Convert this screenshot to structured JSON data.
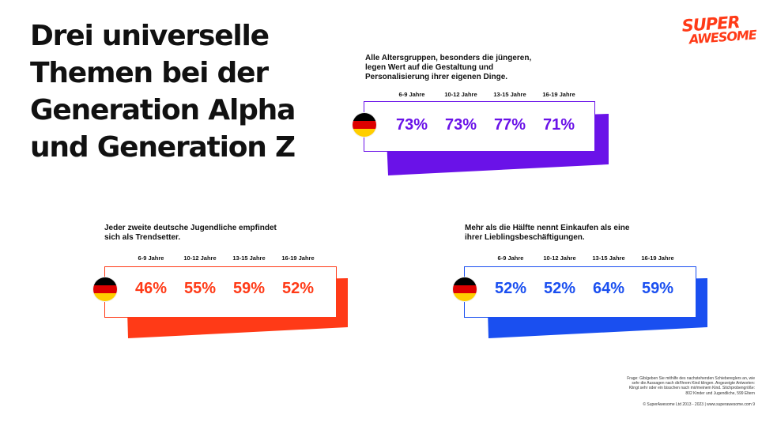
{
  "title_lines": [
    "Drei universelle",
    "Themen bei der",
    "Generation Alpha",
    "und Generation Z"
  ],
  "logo": {
    "line1": "SUPER",
    "line2": "AWESOME"
  },
  "blocks": [
    {
      "caption": [
        "Alle Altersgruppen, besonders die jüngeren,",
        "legen Wert auf die Gestaltung und",
        "Personalisierung ihrer eigenen Dinge."
      ],
      "ages": [
        "6-9 Jahre",
        "10-12 Jahre",
        "13-15 Jahre",
        "16-19 Jahre"
      ],
      "values": [
        "73%",
        "73%",
        "77%",
        "71%"
      ],
      "accent": "#6a12e8"
    },
    {
      "caption": [
        "Jeder zweite deutsche Jugendliche empfindet",
        "sich als Trendsetter."
      ],
      "ages": [
        "6-9 Jahre",
        "10-12 Jahre",
        "13-15 Jahre",
        "16-19 Jahre"
      ],
      "values": [
        "46%",
        "55%",
        "59%",
        "52%"
      ],
      "accent": "#ff3a17"
    },
    {
      "caption": [
        "Mehr als die Hälfte nennt Einkaufen als eine",
        "ihrer Lieblingsbeschäftigungen."
      ],
      "ages": [
        "6-9 Jahre",
        "10-12 Jahre",
        "13-15 Jahre",
        "16-19 Jahre"
      ],
      "values": [
        "52%",
        "52%",
        "64%",
        "59%"
      ],
      "accent": "#1a4ff0"
    }
  ],
  "flag_icon": "germany-flag-icon",
  "flag_colors": [
    "#000000",
    "#dd0000",
    "#ffce00"
  ],
  "footnote_lines": [
    "Frage: Gib/geben Sie mithilfe des nachstehenden Schiebereglers an, wie",
    "sehr die Aussagen nach dir/Ihrem Kind klingen. Angezeigte Antworten:",
    "Klingt sehr oder ein bisschen nach mir/meinem Kind. Stichprobengröße:",
    "802 Kinder und Jugendliche, 599 Eltern"
  ],
  "copyright": "© SuperAwesome Ltd 2013 - 2023 | www.superawesome.com    9"
}
